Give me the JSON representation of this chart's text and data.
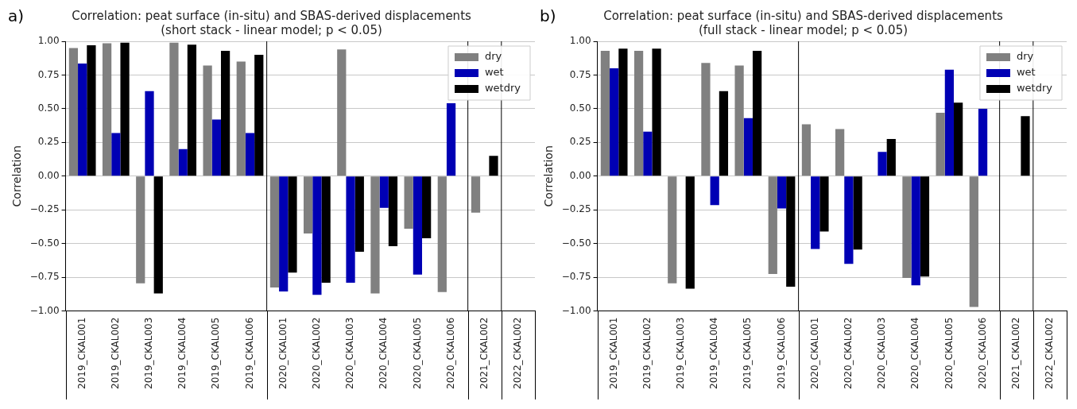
{
  "chart_data": [
    {
      "type": "bar",
      "title": "Correlation: peat surface (in-situ) and SBAS-derived displacements",
      "subtitle": "(short stack - linear model; p < 0.05)",
      "ylabel": "Correlation",
      "annotations": [
        "a)"
      ],
      "categories": [
        "2019_CKAL001",
        "2019_CKAL002",
        "2019_CKAL003",
        "2019_CKAL004",
        "2019_CKAL005",
        "2019_CKAL006",
        "2020_CKAL001",
        "2020_CKAL002",
        "2020_CKAL003",
        "2020_CKAL004",
        "2020_CKAL005",
        "2020_CKAL006",
        "2021_CKAL002",
        "2022_CKAL002"
      ],
      "series": [
        {
          "name": "dry",
          "color": "#808080",
          "values": [
            0.95,
            0.985,
            -0.795,
            0.99,
            0.82,
            0.85,
            -0.825,
            -0.425,
            0.94,
            -0.87,
            -0.39,
            -0.86,
            -0.27,
            null
          ]
        },
        {
          "name": "wet",
          "color": "#0000b4",
          "values": [
            0.835,
            0.32,
            0.63,
            0.2,
            0.42,
            0.32,
            -0.855,
            -0.88,
            -0.79,
            -0.235,
            -0.73,
            0.54,
            null,
            null
          ]
        },
        {
          "name": "wetdry",
          "color": "#000000",
          "values": [
            0.97,
            0.99,
            -0.87,
            0.975,
            0.93,
            0.9,
            -0.715,
            -0.79,
            -0.56,
            -0.52,
            -0.46,
            null,
            0.15,
            null
          ]
        }
      ],
      "ylim": [
        -1,
        1
      ],
      "yticks": [
        {
          "value": -1,
          "label": "−1.00"
        },
        {
          "value": -0.75,
          "label": "−0.75"
        },
        {
          "value": -0.5,
          "label": "−0.50"
        },
        {
          "value": -0.25,
          "label": "−0.25"
        },
        {
          "value": 0,
          "label": "0.00"
        },
        {
          "value": 0.25,
          "label": "0.25"
        },
        {
          "value": 0.5,
          "label": "0.50"
        },
        {
          "value": 0.75,
          "label": "0.75"
        },
        {
          "value": 1,
          "label": "1.00"
        }
      ],
      "grid": "y",
      "legend": "top right"
    },
    {
      "type": "bar",
      "title": "Correlation: peat surface (in-situ) and SBAS-derived displacements",
      "subtitle": "(full stack - linear model; p < 0.05)",
      "ylabel": "Correlation",
      "annotations": [
        "b)"
      ],
      "categories": [
        "2019_CKAL001",
        "2019_CKAL002",
        "2019_CKAL003",
        "2019_CKAL004",
        "2019_CKAL005",
        "2019_CKAL006",
        "2020_CKAL001",
        "2020_CKAL002",
        "2020_CKAL003",
        "2020_CKAL004",
        "2020_CKAL005",
        "2020_CKAL006",
        "2021_CKAL002",
        "2022_CKAL002"
      ],
      "series": [
        {
          "name": "dry",
          "color": "#808080",
          "values": [
            0.93,
            0.93,
            -0.795,
            0.84,
            0.82,
            -0.725,
            0.385,
            0.35,
            null,
            -0.755,
            0.47,
            -0.97,
            null,
            null
          ]
        },
        {
          "name": "wet",
          "color": "#0000b4",
          "values": [
            0.8,
            0.33,
            null,
            -0.215,
            0.43,
            -0.24,
            -0.54,
            -0.65,
            0.18,
            -0.81,
            0.79,
            0.5,
            null,
            null
          ]
        },
        {
          "name": "wetdry",
          "color": "#000000",
          "values": [
            0.945,
            0.945,
            -0.835,
            0.63,
            0.93,
            -0.82,
            -0.41,
            -0.545,
            0.275,
            -0.745,
            0.545,
            null,
            0.445,
            null
          ]
        }
      ],
      "ylim": [
        -1,
        1
      ],
      "yticks": [
        {
          "value": -1,
          "label": "−1.00"
        },
        {
          "value": -0.75,
          "label": "−0.75"
        },
        {
          "value": -0.5,
          "label": "−0.50"
        },
        {
          "value": -0.25,
          "label": "−0.25"
        },
        {
          "value": 0,
          "label": "0.00"
        },
        {
          "value": 0.25,
          "label": "0.25"
        },
        {
          "value": 0.5,
          "label": "0.50"
        },
        {
          "value": 0.75,
          "label": "0.75"
        },
        {
          "value": 1,
          "label": "1.00"
        }
      ],
      "grid": "y",
      "legend": "top right"
    }
  ]
}
